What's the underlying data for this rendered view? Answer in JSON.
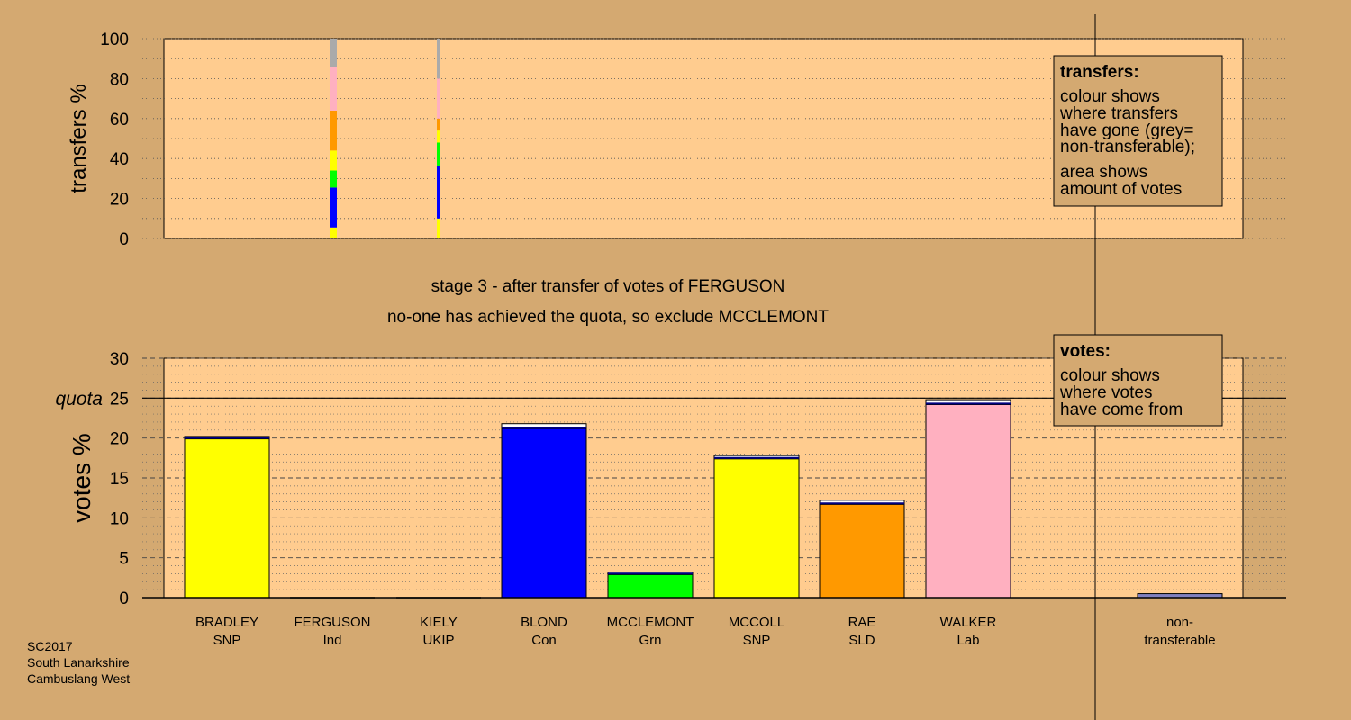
{
  "stage_title": "stage 3 - after transfer of votes of FERGUSON",
  "stage_subtitle": "no-one has achieved the quota, so exclude MCCLEMONT",
  "footer": [
    "SC2017",
    "South Lanarkshire",
    "Cambuslang West"
  ],
  "legend_transfers": {
    "title": "transfers:",
    "lines1": [
      "colour shows",
      "where transfers",
      "have gone (grey=",
      "non-transferable);"
    ],
    "lines2": [
      "area shows",
      "amount of votes"
    ]
  },
  "legend_votes": {
    "title": "votes:",
    "lines": [
      "colour shows",
      "where votes",
      "have come from"
    ]
  },
  "colors": {
    "background": "#d4a971",
    "plot_fill": "#ffcc8f",
    "SNP": "#ffff00",
    "Con": "#0000ff",
    "Grn": "#00ff00",
    "SLD": "#ff9900",
    "Lab": "#ffb0c0",
    "nontransferable": "#aaaaaa"
  },
  "chart_data": [
    {
      "type": "bar",
      "title": "",
      "ylabel": "transfers %",
      "ylim": [
        0,
        100
      ],
      "yticks": [
        0,
        20,
        40,
        60,
        80,
        100
      ],
      "grid": true,
      "stacked": true,
      "columns": [
        {
          "from": "KIELY",
          "segments": [
            {
              "to": "BRADLEY",
              "color": "SNP",
              "value": 5.5
            },
            {
              "to": "BLOND",
              "color": "Con",
              "value": 20
            },
            {
              "to": "MCCLEMONT",
              "color": "Grn",
              "value": 8.5
            },
            {
              "to": "MCCOLL",
              "color": "SNP",
              "value": 10
            },
            {
              "to": "RAE",
              "color": "SLD",
              "value": 20
            },
            {
              "to": "WALKER",
              "color": "Lab",
              "value": 22
            },
            {
              "to": "non-transferable",
              "color": "nontransferable",
              "value": 14
            }
          ]
        },
        {
          "from": "FERGUSON",
          "segments": [
            {
              "to": "BRADLEY",
              "color": "SNP",
              "value": 10
            },
            {
              "to": "BLOND",
              "color": "Con",
              "value": 26.5
            },
            {
              "to": "MCCLEMONT",
              "color": "Grn",
              "value": 11.5
            },
            {
              "to": "MCCOLL",
              "color": "SNP",
              "value": 6
            },
            {
              "to": "RAE",
              "color": "SLD",
              "value": 6
            },
            {
              "to": "WALKER",
              "color": "Lab",
              "value": 20
            },
            {
              "to": "non-transferable",
              "color": "nontransferable",
              "value": 20
            }
          ]
        }
      ]
    },
    {
      "type": "bar",
      "title": "",
      "ylabel": "votes %",
      "ylim": [
        0,
        30
      ],
      "yticks": [
        0,
        5,
        10,
        15,
        20,
        25,
        30
      ],
      "quota": 25,
      "quota_label": "quota",
      "grid": true,
      "candidates": [
        {
          "name": "BRADLEY",
          "party": "SNP",
          "first": 19.9,
          "transfers": 0.3
        },
        {
          "name": "FERGUSON",
          "party": "Ind",
          "first": 0,
          "transfers": 0
        },
        {
          "name": "KIELY",
          "party": "UKIP",
          "first": 0,
          "transfers": 0
        },
        {
          "name": "BLOND",
          "party": "Con",
          "first": 21.2,
          "transfers": 0.6
        },
        {
          "name": "MCCLEMONT",
          "party": "Grn",
          "first": 2.9,
          "transfers": 0.3
        },
        {
          "name": "MCCOLL",
          "party": "SNP",
          "first": 17.4,
          "transfers": 0.4
        },
        {
          "name": "RAE",
          "party": "SLD",
          "first": 11.7,
          "transfers": 0.5
        },
        {
          "name": "WALKER",
          "party": "Lab",
          "first": 24.2,
          "transfers": 0.6
        }
      ],
      "nontransferable": {
        "label1": "non-",
        "label2": "transferable",
        "value": 0.5
      }
    }
  ]
}
